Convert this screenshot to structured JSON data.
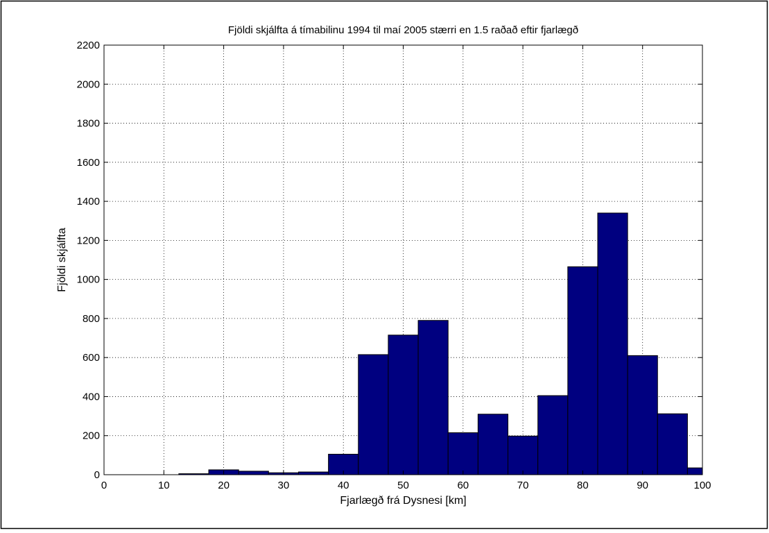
{
  "chart_data": {
    "type": "bar",
    "title": "Fjöldi skjálfta á tímabilinu 1994 til maí 2005 stærri en 1.5 raðað eftir fjarlægð",
    "xlabel": "Fjarlægð frá Dysnesi [km]",
    "ylabel": "Fjöldi skjálfta",
    "xlim": [
      0,
      100
    ],
    "ylim": [
      0,
      2200
    ],
    "xticks": [
      0,
      10,
      20,
      30,
      40,
      50,
      60,
      70,
      80,
      90,
      100
    ],
    "yticks": [
      0,
      200,
      400,
      600,
      800,
      1000,
      1200,
      1400,
      1600,
      1800,
      2000,
      2200
    ],
    "grid": true,
    "bar_color": "#000080",
    "bin_edges": [
      2.5,
      7.5,
      12.5,
      17.5,
      22.5,
      27.5,
      32.5,
      37.5,
      42.5,
      47.5,
      52.5,
      57.5,
      62.5,
      67.5,
      72.5,
      77.5,
      82.5,
      87.5,
      92.5,
      97.5,
      100
    ],
    "values": [
      0,
      0,
      5,
      25,
      18,
      10,
      14,
      105,
      615,
      715,
      790,
      215,
      310,
      198,
      405,
      1065,
      1340,
      610,
      312,
      35
    ]
  }
}
